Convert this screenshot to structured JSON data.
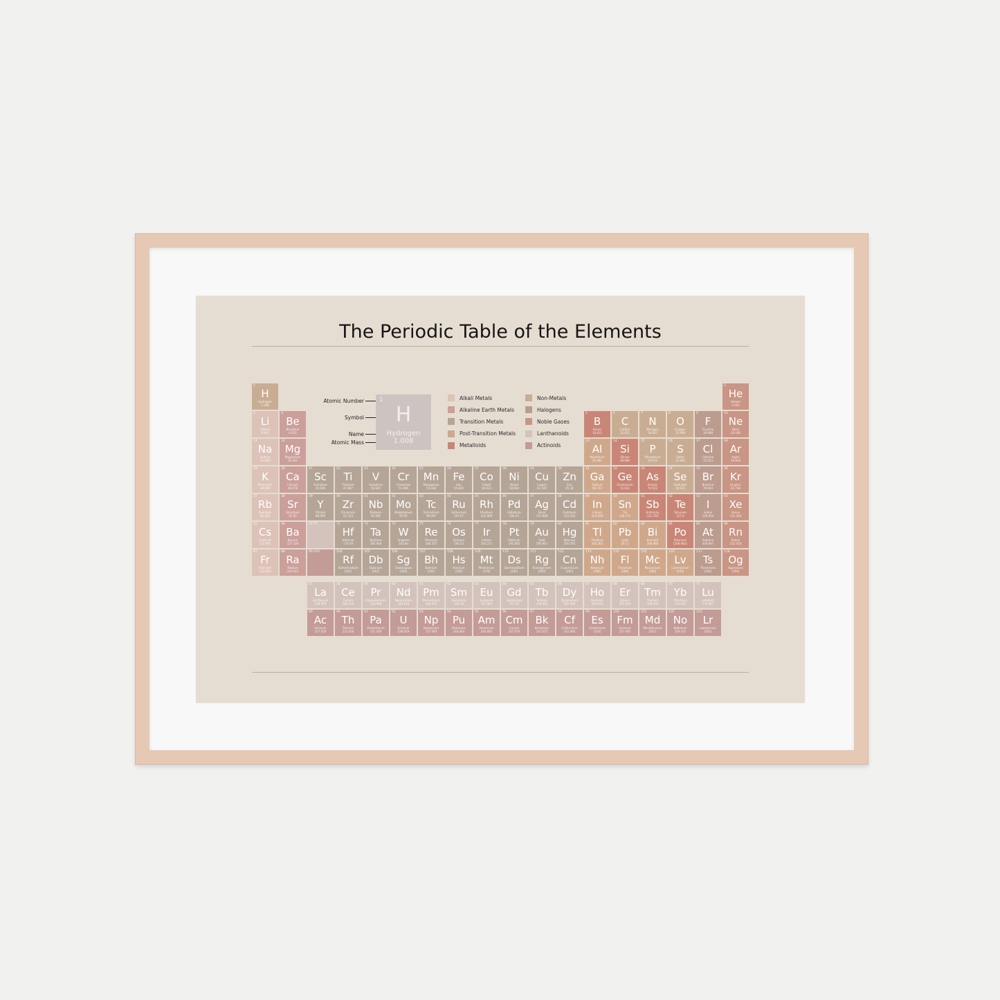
{
  "title": "The Periodic Table of the Elements",
  "key": {
    "number": "1",
    "symbol": "H",
    "name": "Hydrogen",
    "mass": "1.008",
    "labels": [
      "Atomic Number",
      "Symbol",
      "Name",
      "Atomic Mass"
    ]
  },
  "legend": [
    {
      "label": "Alkali Metals",
      "cat": "alkali"
    },
    {
      "label": "Alkaline Earth Metals",
      "cat": "alkaline"
    },
    {
      "label": "Transition Metals",
      "cat": "transition"
    },
    {
      "label": "Post-Transition Metals",
      "cat": "post"
    },
    {
      "label": "Metalloids",
      "cat": "metalloid"
    },
    {
      "label": "Non-Metals",
      "cat": "nonmetal"
    },
    {
      "label": "Halogens",
      "cat": "halogen"
    },
    {
      "label": "Noble Gases",
      "cat": "noble"
    },
    {
      "label": "Lanthanoids",
      "cat": "lanthanoid"
    },
    {
      "label": "Actinoids",
      "cat": "actinoid"
    }
  ],
  "colors": {
    "alkali": "#dcc2b7",
    "alkaline": "#cb9f9a",
    "transition": "#b5a597",
    "post": "#cfa88c",
    "metalloid": "#c98677",
    "nonmetal": "#c9ad93",
    "halogen": "#bc9c8e",
    "noble": "#c99584",
    "lanthanoid": "#d3c3bc",
    "actinoid": "#c39b97",
    "frame": "#e6c9b4",
    "poster": "#e6ddd2"
  },
  "placeholders": [
    {
      "label": "57-71",
      "cat": "lanthanoid",
      "period": 6
    },
    {
      "label": "89-103",
      "cat": "actinoid",
      "period": 7
    }
  ],
  "elements": [
    [
      "1",
      "H",
      "Hydrogen",
      "1.008",
      "nonmetal",
      1,
      1
    ],
    [
      "2",
      "He",
      "Helium",
      "4.003",
      "noble",
      18,
      1
    ],
    [
      "3",
      "Li",
      "Lithium",
      "6.941",
      "alkali",
      1,
      2
    ],
    [
      "4",
      "Be",
      "Beryllium",
      "9.012",
      "alkaline",
      2,
      2
    ],
    [
      "5",
      "B",
      "Boron",
      "10.811",
      "metalloid",
      13,
      2
    ],
    [
      "6",
      "C",
      "Carbon",
      "12.011",
      "nonmetal",
      14,
      2
    ],
    [
      "7",
      "N",
      "Nitrogen",
      "14.007",
      "nonmetal",
      15,
      2
    ],
    [
      "8",
      "O",
      "Oxygen",
      "15.999",
      "nonmetal",
      16,
      2
    ],
    [
      "9",
      "F",
      "Fluorine",
      "18.998",
      "halogen",
      17,
      2
    ],
    [
      "10",
      "Ne",
      "Neon",
      "20.180",
      "noble",
      18,
      2
    ],
    [
      "11",
      "Na",
      "Sodium",
      "22.990",
      "alkali",
      1,
      3
    ],
    [
      "12",
      "Mg",
      "Magnesium",
      "24.305",
      "alkaline",
      2,
      3
    ],
    [
      "13",
      "Al",
      "Aluminium",
      "26.982",
      "post",
      13,
      3
    ],
    [
      "14",
      "Si",
      "Silicon",
      "28.086",
      "metalloid",
      14,
      3
    ],
    [
      "15",
      "P",
      "Phosphorus",
      "30.974",
      "nonmetal",
      15,
      3
    ],
    [
      "16",
      "S",
      "Sulfur",
      "32.066",
      "nonmetal",
      16,
      3
    ],
    [
      "17",
      "Cl",
      "Chlorine",
      "35.453",
      "halogen",
      17,
      3
    ],
    [
      "18",
      "Ar",
      "Argon",
      "39.948",
      "noble",
      18,
      3
    ],
    [
      "19",
      "K",
      "Potassium",
      "39.098",
      "alkali",
      1,
      4
    ],
    [
      "20",
      "Ca",
      "Calcium",
      "40.078",
      "alkaline",
      2,
      4
    ],
    [
      "21",
      "Sc",
      "Scandium",
      "44.956",
      "transition",
      3,
      4
    ],
    [
      "22",
      "Ti",
      "Titanium",
      "47.867",
      "transition",
      4,
      4
    ],
    [
      "23",
      "V",
      "Vanadium",
      "50.942",
      "transition",
      5,
      4
    ],
    [
      "24",
      "Cr",
      "Chromium",
      "51.996",
      "transition",
      6,
      4
    ],
    [
      "25",
      "Mn",
      "Manganese",
      "54.938",
      "transition",
      7,
      4
    ],
    [
      "26",
      "Fe",
      "Iron",
      "55.845",
      "transition",
      8,
      4
    ],
    [
      "27",
      "Co",
      "Cobalt",
      "58.933",
      "transition",
      9,
      4
    ],
    [
      "28",
      "Ni",
      "Nickel",
      "58.693",
      "transition",
      10,
      4
    ],
    [
      "29",
      "Cu",
      "Copper",
      "63.546",
      "transition",
      11,
      4
    ],
    [
      "30",
      "Zn",
      "Zinc",
      "65.38",
      "transition",
      12,
      4
    ],
    [
      "31",
      "Ga",
      "Gallium",
      "69.723",
      "post",
      13,
      4
    ],
    [
      "32",
      "Ge",
      "Germanium",
      "72.631",
      "metalloid",
      14,
      4
    ],
    [
      "33",
      "As",
      "Arsenic",
      "74.922",
      "metalloid",
      15,
      4
    ],
    [
      "34",
      "Se",
      "Selenium",
      "78.972",
      "nonmetal",
      16,
      4
    ],
    [
      "35",
      "Br",
      "Bromine",
      "79.904",
      "halogen",
      17,
      4
    ],
    [
      "36",
      "Kr",
      "Krypton",
      "83.798",
      "noble",
      18,
      4
    ],
    [
      "37",
      "Rb",
      "Rubidium",
      "84.468",
      "alkali",
      1,
      5
    ],
    [
      "38",
      "Sr",
      "Strontium",
      "87.62",
      "alkaline",
      2,
      5
    ],
    [
      "39",
      "Y",
      "Yttrium",
      "88.906",
      "transition",
      3,
      5
    ],
    [
      "40",
      "Zr",
      "Zirconium",
      "91.224",
      "transition",
      4,
      5
    ],
    [
      "41",
      "Nb",
      "Niobium",
      "92.906",
      "transition",
      5,
      5
    ],
    [
      "42",
      "Mo",
      "Molybdenum",
      "95.95",
      "transition",
      6,
      5
    ],
    [
      "43",
      "Tc",
      "Technetium",
      "98.907",
      "transition",
      7,
      5
    ],
    [
      "44",
      "Ru",
      "Ruthenium",
      "101.07",
      "transition",
      8,
      5
    ],
    [
      "45",
      "Rh",
      "Rhodium",
      "102.906",
      "transition",
      9,
      5
    ],
    [
      "46",
      "Pd",
      "Palladium",
      "106.42",
      "transition",
      10,
      5
    ],
    [
      "47",
      "Ag",
      "Silver",
      "107.868",
      "transition",
      11,
      5
    ],
    [
      "48",
      "Cd",
      "Cadmium",
      "112.414",
      "transition",
      12,
      5
    ],
    [
      "49",
      "In",
      "Indium",
      "114.818",
      "post",
      13,
      5
    ],
    [
      "50",
      "Sn",
      "Tin",
      "118.711",
      "post",
      14,
      5
    ],
    [
      "51",
      "Sb",
      "Antimony",
      "121.760",
      "metalloid",
      15,
      5
    ],
    [
      "52",
      "Te",
      "Tellurium",
      "127.6",
      "metalloid",
      16,
      5
    ],
    [
      "53",
      "I",
      "Iodine",
      "126.904",
      "halogen",
      17,
      5
    ],
    [
      "54",
      "Xe",
      "Xenon",
      "131.294",
      "noble",
      18,
      5
    ],
    [
      "55",
      "Cs",
      "Caesium",
      "132.905",
      "alkali",
      1,
      6
    ],
    [
      "56",
      "Ba",
      "Barium",
      "137.328",
      "alkaline",
      2,
      6
    ],
    [
      "72",
      "Hf",
      "Hafnium",
      "178.49",
      "transition",
      4,
      6
    ],
    [
      "73",
      "Ta",
      "Tantalum",
      "180.948",
      "transition",
      5,
      6
    ],
    [
      "74",
      "W",
      "Tungsten",
      "183.84",
      "transition",
      6,
      6
    ],
    [
      "75",
      "Re",
      "Rhenium",
      "186.207",
      "transition",
      7,
      6
    ],
    [
      "76",
      "Os",
      "Osmium",
      "190.23",
      "transition",
      8,
      6
    ],
    [
      "77",
      "Ir",
      "Iridium",
      "192.217",
      "transition",
      9,
      6
    ],
    [
      "78",
      "Pt",
      "Platinum",
      "195.085",
      "transition",
      10,
      6
    ],
    [
      "79",
      "Au",
      "Gold",
      "196.967",
      "transition",
      11,
      6
    ],
    [
      "80",
      "Hg",
      "Mercury",
      "200.592",
      "transition",
      12,
      6
    ],
    [
      "81",
      "Tl",
      "Thallium",
      "204.383",
      "post",
      13,
      6
    ],
    [
      "82",
      "Pb",
      "Lead",
      "207.2",
      "post",
      14,
      6
    ],
    [
      "83",
      "Bi",
      "Bismuth",
      "208.980",
      "post",
      15,
      6
    ],
    [
      "84",
      "Po",
      "Polonium",
      "[208.982]",
      "metalloid",
      16,
      6
    ],
    [
      "85",
      "At",
      "Astatine",
      "209.987",
      "halogen",
      17,
      6
    ],
    [
      "86",
      "Rn",
      "Radon",
      "222.018",
      "noble",
      18,
      6
    ],
    [
      "87",
      "Fr",
      "Francium",
      "223.020",
      "alkali",
      1,
      7
    ],
    [
      "88",
      "Ra",
      "Radium",
      "226.025",
      "alkaline",
      2,
      7
    ],
    [
      "104",
      "Rf",
      "Rutherfordium",
      "[261]",
      "transition",
      4,
      7
    ],
    [
      "105",
      "Db",
      "Dubnium",
      "[262]",
      "transition",
      5,
      7
    ],
    [
      "106",
      "Sg",
      "Seaborgium",
      "[266]",
      "transition",
      6,
      7
    ],
    [
      "107",
      "Bh",
      "Bohrium",
      "[264]",
      "transition",
      7,
      7
    ],
    [
      "108",
      "Hs",
      "Hassium",
      "[269]",
      "transition",
      8,
      7
    ],
    [
      "109",
      "Mt",
      "Meitnerium",
      "[278]",
      "transition",
      9,
      7
    ],
    [
      "110",
      "Ds",
      "Darmstadtium",
      "[281]",
      "transition",
      10,
      7
    ],
    [
      "111",
      "Rg",
      "Roentgenium",
      "[280]",
      "transition",
      11,
      7
    ],
    [
      "112",
      "Cn",
      "Copernicium",
      "[285]",
      "transition",
      12,
      7
    ],
    [
      "113",
      "Nh",
      "Nihonium",
      "[286]",
      "post",
      13,
      7
    ],
    [
      "114",
      "Fl",
      "Flerovium",
      "[289]",
      "post",
      14,
      7
    ],
    [
      "115",
      "Mc",
      "Moscovium",
      "[289]",
      "post",
      15,
      7
    ],
    [
      "116",
      "Lv",
      "Livermorium",
      "[293]",
      "post",
      16,
      7
    ],
    [
      "117",
      "Ts",
      "Tennessine",
      "[294]",
      "halogen",
      17,
      7
    ],
    [
      "118",
      "Og",
      "Oganesson",
      "[294]",
      "noble",
      18,
      7
    ],
    [
      "57",
      "La",
      "Lanthanum",
      "138.905",
      "lanthanoid",
      3,
      8
    ],
    [
      "58",
      "Ce",
      "Cerium",
      "140.116",
      "lanthanoid",
      4,
      8
    ],
    [
      "59",
      "Pr",
      "Praseodymium",
      "140.908",
      "lanthanoid",
      5,
      8
    ],
    [
      "60",
      "Nd",
      "Neodymium",
      "144.243",
      "lanthanoid",
      6,
      8
    ],
    [
      "61",
      "Pm",
      "Promethium",
      "144.913",
      "lanthanoid",
      7,
      8
    ],
    [
      "62",
      "Sm",
      "Samarium",
      "150.36",
      "lanthanoid",
      8,
      8
    ],
    [
      "63",
      "Eu",
      "Europium",
      "151.964",
      "lanthanoid",
      9,
      8
    ],
    [
      "64",
      "Gd",
      "Gadolinium",
      "157.25",
      "lanthanoid",
      10,
      8
    ],
    [
      "65",
      "Tb",
      "Terbium",
      "158.925",
      "lanthanoid",
      11,
      8
    ],
    [
      "66",
      "Dy",
      "Dysprosium",
      "162.500",
      "lanthanoid",
      12,
      8
    ],
    [
      "67",
      "Ho",
      "Holmium",
      "164.930",
      "lanthanoid",
      13,
      8
    ],
    [
      "68",
      "Er",
      "Erbium",
      "167.259",
      "lanthanoid",
      14,
      8
    ],
    [
      "69",
      "Tm",
      "Thulium",
      "168.934",
      "lanthanoid",
      15,
      8
    ],
    [
      "70",
      "Yb",
      "Ytterbium",
      "173.055",
      "lanthanoid",
      16,
      8
    ],
    [
      "71",
      "Lu",
      "Lutetium",
      "174.967",
      "lanthanoid",
      17,
      8
    ],
    [
      "89",
      "Ac",
      "Actinium",
      "227.028",
      "actinoid",
      3,
      9
    ],
    [
      "90",
      "Th",
      "Thorium",
      "232.038",
      "actinoid",
      4,
      9
    ],
    [
      "91",
      "Pa",
      "Protactinium",
      "231.036",
      "actinoid",
      5,
      9
    ],
    [
      "92",
      "U",
      "Uranium",
      "238.029",
      "actinoid",
      6,
      9
    ],
    [
      "93",
      "Np",
      "Neptunium",
      "237.048",
      "actinoid",
      7,
      9
    ],
    [
      "94",
      "Pu",
      "Plutonium",
      "244.064",
      "actinoid",
      8,
      9
    ],
    [
      "95",
      "Am",
      "Americium",
      "243.061",
      "actinoid",
      9,
      9
    ],
    [
      "96",
      "Cm",
      "Curium",
      "247.070",
      "actinoid",
      10,
      9
    ],
    [
      "97",
      "Bk",
      "Berkelium",
      "247.070",
      "actinoid",
      11,
      9
    ],
    [
      "98",
      "Cf",
      "Californium",
      "251.080",
      "actinoid",
      12,
      9
    ],
    [
      "99",
      "Es",
      "Einsteinium",
      "[254]",
      "actinoid",
      13,
      9
    ],
    [
      "100",
      "Fm",
      "Fermium",
      "257.095",
      "actinoid",
      14,
      9
    ],
    [
      "101",
      "Md",
      "Mendelevium",
      "258.1",
      "actinoid",
      15,
      9
    ],
    [
      "102",
      "No",
      "Nobelium",
      "259.101",
      "actinoid",
      16,
      9
    ],
    [
      "103",
      "Lr",
      "Lawrencium",
      "[262]",
      "actinoid",
      17,
      9
    ]
  ]
}
